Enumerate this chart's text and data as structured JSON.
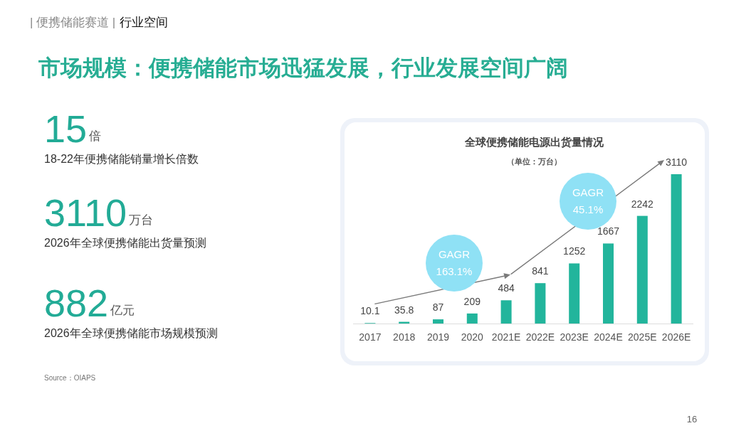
{
  "chart_data": [
    {
      "type": "other",
      "title": "市场规模：便携储能市场迅猛发展，行业发展空间广阔",
      "annotations": [
        "| 便携储能赛道 |",
        "行业空间",
        "15",
        "倍",
        "18-22年便携储能销量增长倍数",
        "3110",
        "万台",
        "2026年全球便携储能出货量预测",
        "882",
        "亿元",
        "2026年全球便携储能市场规模预测",
        "Source：OIAPS",
        "16"
      ]
    },
    {
      "type": "bar",
      "title": "全球便携储能电源出货量情况",
      "subtitle": "（单位：万台）",
      "categories": [
        "2017",
        "2018",
        "2019",
        "2020",
        "2021E",
        "2022E",
        "2023E",
        "2024E",
        "2025E",
        "2026E"
      ],
      "values": [
        10.1,
        35.8,
        87,
        209,
        484,
        841,
        1252,
        1667,
        2242,
        3110
      ],
      "color": "#22b59c",
      "data_labels": true,
      "annotations": [
        "GAGR 163.1%",
        "GAGR 45.1%"
      ]
    }
  ]
}
